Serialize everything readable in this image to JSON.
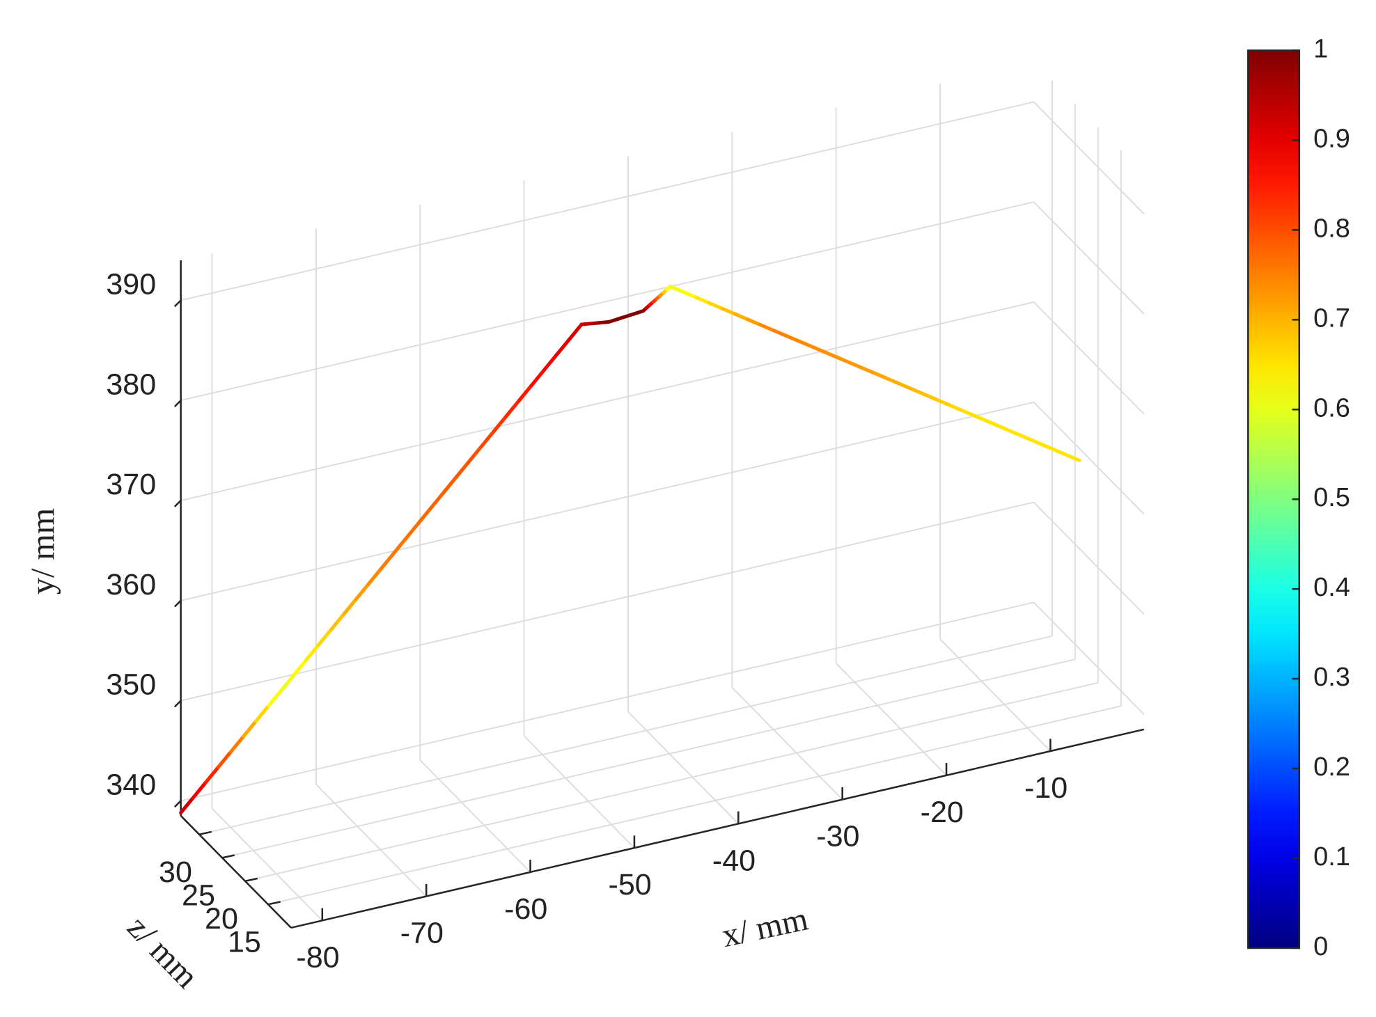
{
  "chart_data": {
    "type": "line3d",
    "x_label": "x/ mm",
    "y_label": "y/ mm",
    "z_label": "z/ mm",
    "x": [
      -83,
      -73.7,
      -64.4,
      -55.1,
      -45.8,
      -43.4,
      -40.1,
      -37.7,
      -29.5,
      -21.4,
      -13.2,
      -5
    ],
    "y": [
      338.8,
      349.1,
      359.4,
      369.7,
      380,
      379.9,
      380.2,
      382.3,
      377.7,
      373.2,
      368.6,
      364
    ],
    "z": [
      34,
      33.25,
      32.5,
      31.75,
      31,
      30.5,
      30.5,
      30,
      26.25,
      22.5,
      18.75,
      15
    ],
    "color_values": [
      0.95,
      0.6,
      0.75,
      0.8,
      0.92,
      1,
      1,
      0.6,
      0.75,
      0.72,
      0.65,
      0.65
    ],
    "xlim": [
      -83,
      -1
    ],
    "ylim": [
      338.5,
      394
    ],
    "zlim": [
      10,
      34
    ],
    "xticks": [
      -80,
      -70,
      -60,
      -50,
      -40,
      -30,
      -20,
      -10
    ],
    "yticks": [
      340,
      350,
      360,
      370,
      380,
      390
    ],
    "zticks": [
      15,
      20,
      25,
      30
    ],
    "grid": true,
    "colormap": "jet",
    "clim": [
      0,
      1
    ],
    "colorbar_ticks": [
      0,
      0.1,
      0.2,
      0.3,
      0.4,
      0.5,
      0.6,
      0.7,
      0.8,
      0.9,
      1
    ]
  }
}
